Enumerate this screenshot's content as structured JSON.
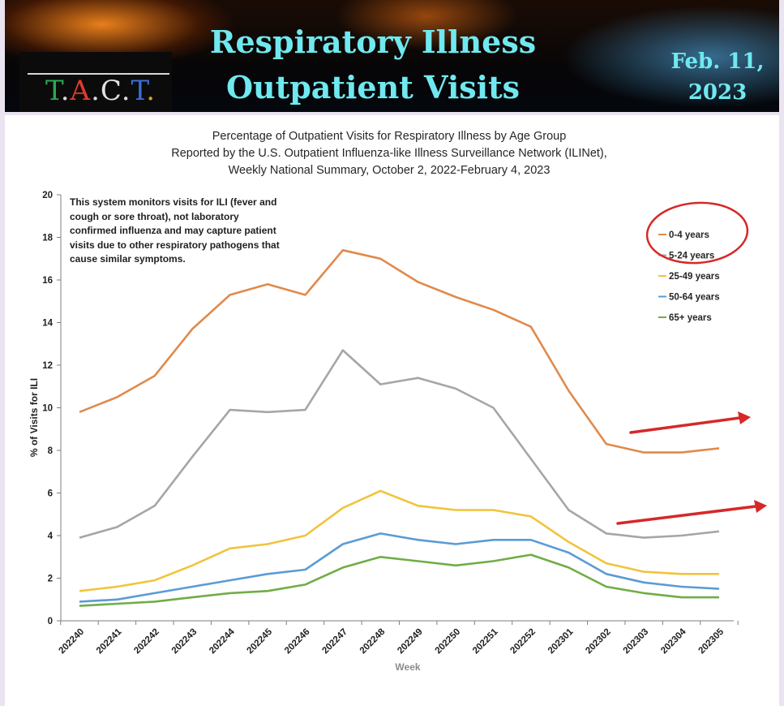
{
  "banner": {
    "title_line1": "Respiratory Illness",
    "title_line2": "Outpatient Visits",
    "date_line1": "Feb. 11,",
    "date_line2": "2023",
    "logo": [
      {
        "ch": "T",
        "color": "#2aa852"
      },
      {
        "ch": ".",
        "color": "#d9d9d9"
      },
      {
        "ch": "A",
        "color": "#e03a2b"
      },
      {
        "ch": ".",
        "color": "#d9d9d9"
      },
      {
        "ch": "C",
        "color": "#e0e0e0"
      },
      {
        "ch": ".",
        "color": "#d9d9d9"
      },
      {
        "ch": "T",
        "color": "#3b6fd8"
      },
      {
        "ch": ".",
        "color": "#e0a020"
      }
    ]
  },
  "chart_data": {
    "type": "line",
    "title": [
      "Percentage of Outpatient Visits for Respiratory Illness by Age Group",
      "Reported by the U.S. Outpatient Influenza-like Illness Surveillance Network (ILINet),",
      "Weekly National Summary, October 2, 2022-February 4, 2023"
    ],
    "xlabel": "Week",
    "ylabel": "% of Visits for ILI",
    "ylim": [
      0,
      20
    ],
    "yticks": [
      0,
      2,
      4,
      6,
      8,
      10,
      12,
      14,
      16,
      18,
      20
    ],
    "categories": [
      "202240",
      "202241",
      "202242",
      "202243",
      "202244",
      "202245",
      "202246",
      "202247",
      "202248",
      "202249",
      "202250",
      "202251",
      "202252",
      "202301",
      "202302",
      "202303",
      "202304",
      "202305"
    ],
    "legend_position": "top-right",
    "grid": false,
    "series": [
      {
        "name": "0-4 years",
        "color": "#e08a4c",
        "values": [
          9.8,
          10.5,
          11.5,
          13.7,
          15.3,
          15.8,
          15.3,
          17.4,
          17.0,
          15.9,
          15.2,
          14.6,
          13.8,
          10.8,
          8.3,
          7.9,
          7.9,
          8.1
        ]
      },
      {
        "name": "5-24 years",
        "color": "#a6a6a6",
        "values": [
          3.9,
          4.4,
          5.4,
          7.7,
          9.9,
          9.8,
          9.9,
          12.7,
          11.1,
          11.4,
          10.9,
          10.0,
          7.6,
          5.2,
          4.1,
          3.9,
          4.0,
          4.2
        ]
      },
      {
        "name": "25-49 years",
        "color": "#f0c43c",
        "values": [
          1.4,
          1.6,
          1.9,
          2.6,
          3.4,
          3.6,
          4.0,
          5.3,
          6.1,
          5.4,
          5.2,
          5.2,
          4.9,
          3.7,
          2.7,
          2.3,
          2.2,
          2.2
        ]
      },
      {
        "name": "50-64 years",
        "color": "#5b9bd5",
        "values": [
          0.9,
          1.0,
          1.3,
          1.6,
          1.9,
          2.2,
          2.4,
          3.6,
          4.1,
          3.8,
          3.6,
          3.8,
          3.8,
          3.2,
          2.2,
          1.8,
          1.6,
          1.5
        ]
      },
      {
        "name": "65+ years",
        "color": "#70ad47",
        "values": [
          0.7,
          0.8,
          0.9,
          1.1,
          1.3,
          1.4,
          1.7,
          2.5,
          3.0,
          2.8,
          2.6,
          2.8,
          3.1,
          2.5,
          1.6,
          1.3,
          1.1,
          1.1
        ]
      }
    ],
    "note": "This system monitors visits for ILI (fever and cough or sore throat), not laboratory confirmed influenza and may capture patient visits due to other respiratory pathogens that cause similar symptoms.",
    "annotation_color": "#d62828"
  }
}
